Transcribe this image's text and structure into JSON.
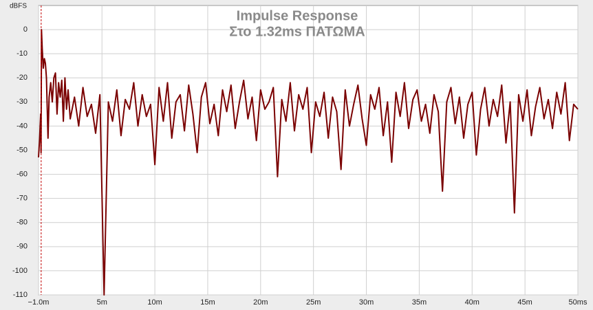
{
  "chart_data": {
    "type": "line",
    "title": "Impulse Response",
    "subtitle": "Στο 1.32ms ΠΑΤΩΜΑ",
    "y_label": "dBFS",
    "x": [
      -1.0,
      -0.95,
      -0.9,
      -0.85,
      -0.8,
      -0.76,
      -0.72,
      -0.65,
      -0.55,
      -0.45,
      -0.35,
      -0.25,
      -0.1,
      0.0,
      0.15,
      0.3,
      0.45,
      0.6,
      0.75,
      0.9,
      1.05,
      1.2,
      1.35,
      1.5,
      1.65,
      1.8,
      2.0,
      2.4,
      2.8,
      3.2,
      3.6,
      4.0,
      4.4,
      4.8,
      5.2,
      5.6,
      6.0,
      6.4,
      6.8,
      7.2,
      7.6,
      8.0,
      8.4,
      8.8,
      9.2,
      9.6,
      10.0,
      10.4,
      10.8,
      11.2,
      11.6,
      12.0,
      12.4,
      12.8,
      13.2,
      13.6,
      14.0,
      14.4,
      14.8,
      15.2,
      15.6,
      16.0,
      16.4,
      16.8,
      17.2,
      17.6,
      18.0,
      18.4,
      18.8,
      19.2,
      19.6,
      20.0,
      20.4,
      20.8,
      21.2,
      21.6,
      22.0,
      22.4,
      22.8,
      23.2,
      23.6,
      24.0,
      24.4,
      24.8,
      25.2,
      25.6,
      26.0,
      26.4,
      26.8,
      27.2,
      27.6,
      28.0,
      28.4,
      28.8,
      29.2,
      29.6,
      30.0,
      30.4,
      30.8,
      31.2,
      31.6,
      32.0,
      32.4,
      32.8,
      33.2,
      33.6,
      34.0,
      34.4,
      34.8,
      35.2,
      35.6,
      36.0,
      36.4,
      36.8,
      37.2,
      37.6,
      38.0,
      38.4,
      38.8,
      39.2,
      39.6,
      40.0,
      40.4,
      40.8,
      41.2,
      41.6,
      42.0,
      42.4,
      42.8,
      43.2,
      43.6,
      44.0,
      44.4,
      44.8,
      45.2,
      45.6,
      46.0,
      46.4,
      46.8,
      47.2,
      47.6,
      48.0,
      48.4,
      48.8,
      49.2,
      49.6,
      50.0
    ],
    "series": [
      {
        "color": "#7a0000",
        "values": [
          -53,
          -49,
          -46,
          -40,
          -35,
          -51,
          0,
          -8,
          -16,
          -12,
          -14,
          -20,
          -45,
          -28,
          -22,
          -30,
          -20,
          -18,
          -35,
          -22,
          -28,
          -21,
          -38,
          -20,
          -33,
          -25,
          -37,
          -28,
          -40,
          -24,
          -36,
          -31,
          -43,
          -27,
          -110,
          -30,
          -38,
          -25,
          -44,
          -29,
          -33,
          -22,
          -40,
          -27,
          -36,
          -31,
          -56,
          -24,
          -38,
          -22,
          -45,
          -30,
          -27,
          -42,
          -23,
          -35,
          -51,
          -28,
          -22,
          -39,
          -31,
          -44,
          -25,
          -34,
          -23,
          -41,
          -30,
          -21,
          -37,
          -28,
          -46,
          -25,
          -33,
          -30,
          -24,
          -61,
          -29,
          -38,
          -22,
          -42,
          -27,
          -33,
          -24,
          -51,
          -30,
          -36,
          -26,
          -45,
          -28,
          -34,
          -58,
          -25,
          -40,
          -31,
          -23,
          -37,
          -48,
          -27,
          -33,
          -24,
          -44,
          -30,
          -55,
          -26,
          -36,
          -22,
          -41,
          -29,
          -25,
          -38,
          -31,
          -43,
          -27,
          -34,
          -67,
          -30,
          -24,
          -39,
          -28,
          -45,
          -31,
          -26,
          -52,
          -33,
          -24,
          -40,
          -29,
          -36,
          -23,
          -47,
          -30,
          -76,
          -27,
          -38,
          -25,
          -44,
          -32,
          -24,
          -37,
          -29,
          -41,
          -26,
          -35,
          -22,
          -46,
          -31,
          -33
        ]
      }
    ],
    "xlim": [
      -1.0,
      50
    ],
    "xticks": [
      {
        "value": -1.0,
        "label": "−1.0m"
      },
      {
        "value": 5,
        "label": "5m"
      },
      {
        "value": 10,
        "label": "10m"
      },
      {
        "value": 15,
        "label": "15m"
      },
      {
        "value": 20,
        "label": "20m"
      },
      {
        "value": 25,
        "label": "25m"
      },
      {
        "value": 30,
        "label": "30m"
      },
      {
        "value": 35,
        "label": "35m"
      },
      {
        "value": 40,
        "label": "40m"
      },
      {
        "value": 45,
        "label": "45m"
      },
      {
        "value": 50,
        "label": "50ms"
      }
    ],
    "ylim": [
      -110,
      10
    ],
    "yticks": [
      0,
      -10,
      -20,
      -30,
      -40,
      -50,
      -60,
      -70,
      -80,
      -90,
      -100,
      -110
    ],
    "marker_x": -0.75,
    "marker_color": "#c00000",
    "grid": true
  }
}
